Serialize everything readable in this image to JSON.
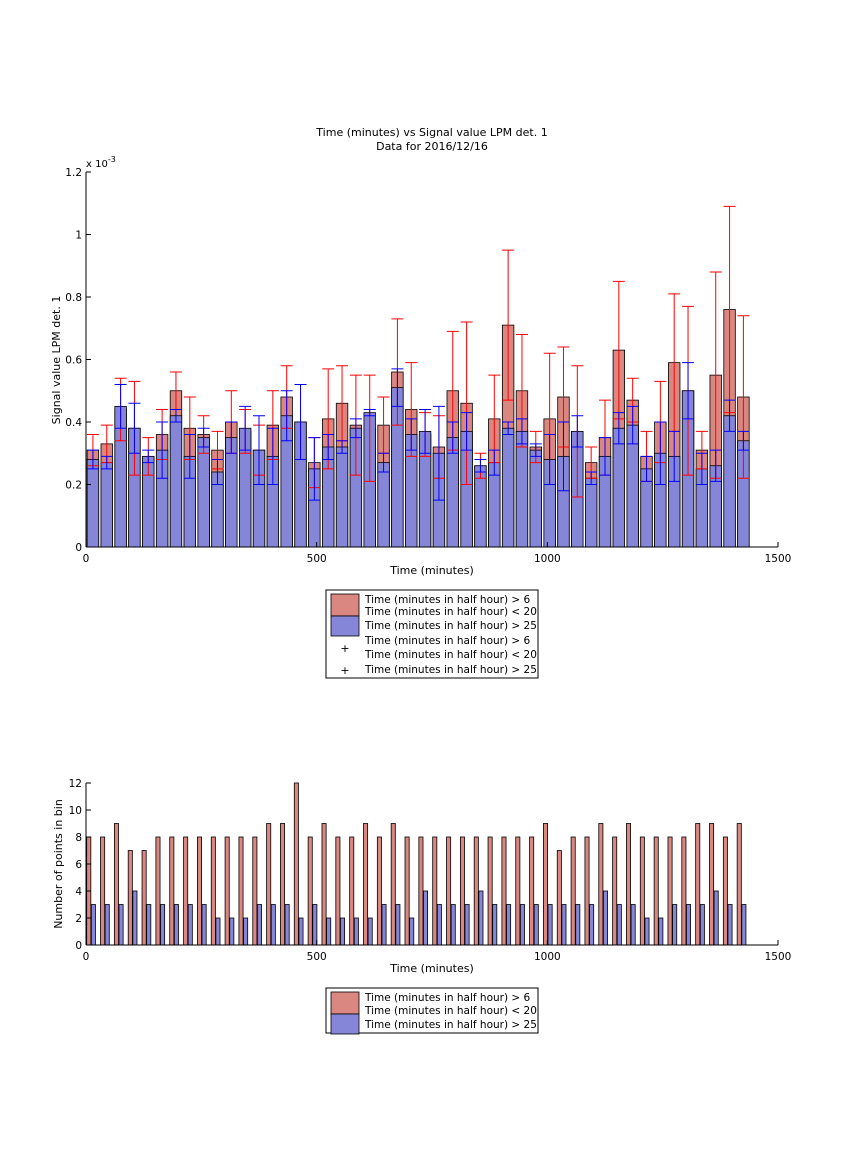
{
  "chart_data": [
    {
      "type": "bar",
      "title": "Time (minutes) vs Signal value LPM det. 1",
      "subtitle": "Data for 2016/12/16",
      "xlabel": "Time (minutes)",
      "ylabel": "Signal value LPM det. 1",
      "y_multiplier": "x 10",
      "y_multiplier_exp": "-3",
      "xlim": [
        0,
        1500
      ],
      "ylim": [
        0,
        1.2
      ],
      "y_scale": 0.001,
      "x_ticks": [
        "0",
        "500",
        "1000",
        "1500"
      ],
      "y_ticks": [
        "0",
        "0.2",
        "0.4",
        "0.6",
        "0.8",
        "1",
        "1.2"
      ],
      "grid": false,
      "legend_position": "below",
      "legend": [
        {
          "kind": "patch",
          "color": "#d98780",
          "label": "Time (minutes in half hour) > 6"
        },
        {
          "kind": "text",
          "label": "Time (minutes in half hour) < 20"
        },
        {
          "kind": "patch",
          "color": "#8686d8",
          "label": "Time (minutes in half hour) > 25"
        },
        {
          "kind": "text",
          "label": "Time (minutes in half hour) > 6"
        },
        {
          "kind": "marker",
          "color": "#ff0000",
          "label": "Time (minutes in half hour) < 20"
        },
        {
          "kind": "marker",
          "color": "#0000ff",
          "label": "Time (minutes in half hour) > 25"
        }
      ],
      "bar_width": 25,
      "series": [
        {
          "color": "#d98780",
          "err_color": "#ff0000",
          "x": [
            15,
            45,
            75,
            105,
            135,
            165,
            195,
            225,
            255,
            285,
            315,
            345,
            375,
            405,
            435,
            465,
            495,
            525,
            555,
            585,
            615,
            645,
            675,
            705,
            735,
            765,
            795,
            825,
            855,
            885,
            915,
            945,
            975,
            1005,
            1035,
            1065,
            1095,
            1125,
            1155,
            1185,
            1215,
            1245,
            1275,
            1305,
            1335,
            1365,
            1395,
            1425
          ],
          "values": [
            0.31,
            0.33,
            0.44,
            0.38,
            0.29,
            0.36,
            0.5,
            0.38,
            0.36,
            0.31,
            0.4,
            0.37,
            0.31,
            0.39,
            0.48,
            0.4,
            0.27,
            0.41,
            0.46,
            0.39,
            0.38,
            0.39,
            0.56,
            0.44,
            0.36,
            0.32,
            0.5,
            0.46,
            0.26,
            0.41,
            0.71,
            0.5,
            0.32,
            0.41,
            0.48,
            0.37,
            0.27,
            0.35,
            0.63,
            0.47,
            0.29,
            0.4,
            0.59,
            0.5,
            0.31,
            0.55,
            0.76,
            0.48
          ],
          "err": [
            0.05,
            0.06,
            0.1,
            0.15,
            0.06,
            0.08,
            0.06,
            0.1,
            0.06,
            0.06,
            0.1,
            0.07,
            0.08,
            0.11,
            0.1,
            0.12,
            0.08,
            0.16,
            0.12,
            0.16,
            0.17,
            0.09,
            0.17,
            0.15,
            0.07,
            0.1,
            0.19,
            0.26,
            0.04,
            0.14,
            0.24,
            0.18,
            0.05,
            0.21,
            0.16,
            0.21,
            0.05,
            0.12,
            0.22,
            0.07,
            0.08,
            0.13,
            0.22,
            0.27,
            0.06,
            0.33,
            0.33,
            0.26
          ]
        },
        {
          "color": "#8686d8",
          "err_color": "#0000ff",
          "x": [
            15,
            45,
            75,
            105,
            135,
            165,
            195,
            225,
            255,
            285,
            315,
            345,
            375,
            405,
            435,
            465,
            495,
            525,
            555,
            585,
            615,
            645,
            675,
            705,
            735,
            765,
            795,
            825,
            855,
            885,
            915,
            945,
            975,
            1005,
            1035,
            1065,
            1095,
            1125,
            1155,
            1185,
            1215,
            1245,
            1275,
            1305,
            1335,
            1365,
            1395,
            1425
          ],
          "values": [
            0.28,
            0.27,
            0.45,
            0.38,
            0.29,
            0.31,
            0.42,
            0.29,
            0.35,
            0.24,
            0.35,
            0.38,
            0.31,
            0.29,
            0.42,
            0.4,
            0.25,
            0.32,
            0.32,
            0.38,
            0.43,
            0.27,
            0.51,
            0.36,
            0.37,
            0.3,
            0.35,
            0.37,
            0.26,
            0.27,
            0.38,
            0.37,
            0.31,
            0.28,
            0.29,
            0.37,
            0.22,
            0.29,
            0.38,
            0.39,
            0.25,
            0.3,
            0.29,
            0.5,
            0.25,
            0.26,
            0.42,
            0.34
          ],
          "err": [
            0.03,
            0.02,
            0.07,
            0.08,
            0.02,
            0.09,
            0.02,
            0.07,
            0.03,
            0.04,
            0.05,
            0.07,
            0.11,
            0.09,
            0.08,
            0.12,
            0.1,
            0.04,
            0.02,
            0.03,
            0.01,
            0.03,
            0.06,
            0.05,
            0.07,
            0.15,
            0.05,
            0.06,
            0.02,
            0.04,
            0.02,
            0.04,
            0.02,
            0.08,
            0.11,
            0.05,
            0.02,
            0.06,
            0.05,
            0.06,
            0.04,
            0.1,
            0.08,
            0.09,
            0.05,
            0.05,
            0.05,
            0.03
          ]
        }
      ]
    },
    {
      "type": "bar",
      "title": "",
      "xlabel": "Time (minutes)",
      "ylabel": "Number of points in bin",
      "xlim": [
        0,
        1500
      ],
      "ylim": [
        0,
        12
      ],
      "x_ticks": [
        "0",
        "500",
        "1000",
        "1500"
      ],
      "y_ticks": [
        "0",
        "2",
        "4",
        "6",
        "8",
        "10",
        "12"
      ],
      "grid": false,
      "legend_position": "below",
      "legend": [
        {
          "kind": "patch",
          "color": "#d98780",
          "label": "Time (minutes in half hour) > 6"
        },
        {
          "kind": "text",
          "label": "Time (minutes in half hour) < 20"
        },
        {
          "kind": "patch",
          "color": "#8686d8",
          "label": "Time (minutes in half hour) > 25"
        }
      ],
      "bar_width": 9,
      "series": [
        {
          "color": "#d98780",
          "x": [
            6,
            36,
            66,
            96,
            126,
            156,
            186,
            216,
            246,
            276,
            306,
            336,
            366,
            396,
            426,
            456,
            486,
            516,
            546,
            576,
            606,
            636,
            666,
            696,
            726,
            756,
            786,
            816,
            846,
            876,
            906,
            936,
            966,
            996,
            1026,
            1056,
            1086,
            1116,
            1146,
            1176,
            1206,
            1236,
            1266,
            1296,
            1326,
            1356,
            1386,
            1416
          ],
          "values": [
            8,
            8,
            9,
            7,
            7,
            8,
            8,
            8,
            8,
            8,
            8,
            8,
            8,
            9,
            9,
            12,
            8,
            9,
            8,
            8,
            9,
            8,
            9,
            8,
            8,
            8,
            8,
            8,
            8,
            8,
            8,
            8,
            8,
            9,
            7,
            8,
            8,
            9,
            8,
            9,
            8,
            8,
            8,
            8,
            9,
            9,
            8,
            9
          ]
        },
        {
          "color": "#8686d8",
          "x": [
            16,
            46,
            76,
            106,
            136,
            166,
            196,
            226,
            256,
            286,
            316,
            346,
            376,
            406,
            436,
            466,
            496,
            526,
            556,
            586,
            616,
            646,
            676,
            706,
            736,
            766,
            796,
            826,
            856,
            886,
            916,
            946,
            976,
            1006,
            1036,
            1066,
            1096,
            1126,
            1156,
            1186,
            1216,
            1246,
            1276,
            1306,
            1336,
            1366,
            1396,
            1426
          ],
          "values": [
            3,
            3,
            3,
            4,
            3,
            3,
            3,
            3,
            3,
            2,
            2,
            2,
            3,
            3,
            3,
            2,
            3,
            2,
            2,
            2,
            2,
            3,
            3,
            2,
            4,
            3,
            3,
            3,
            4,
            3,
            3,
            3,
            3,
            3,
            3,
            3,
            3,
            4,
            3,
            3,
            2,
            2,
            3,
            3,
            3,
            4,
            3,
            3
          ]
        }
      ]
    }
  ]
}
